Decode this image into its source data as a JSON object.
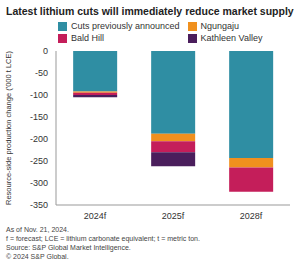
{
  "chart_data": {
    "type": "bar",
    "title": "Latest lithium cuts will immediately reduce market supply",
    "y_label": "Resource-side production change ('000 t LCE)",
    "categories": [
      "2024f",
      "2025f",
      "2028f"
    ],
    "series": [
      {
        "name": "Cuts previously announced",
        "color": "#2f8ea3",
        "values": [
          -92,
          -188,
          -243
        ]
      },
      {
        "name": "Ngungaju",
        "color": "#f0901e",
        "values": [
          -3,
          -17,
          -22
        ]
      },
      {
        "name": "Bald Hill",
        "color": "#c41e5a",
        "values": [
          -5,
          -25,
          -55
        ]
      },
      {
        "name": "Kathleen Valley",
        "color": "#4a1e5c",
        "values": [
          -5,
          -32,
          0
        ]
      }
    ],
    "ylim": [
      -350,
      0
    ],
    "yticks": [
      -350,
      -300,
      -250,
      -200,
      -150,
      -100,
      -50,
      0
    ],
    "stacked": true,
    "grid": false,
    "legend": "top",
    "notes": [
      "As of Nov. 21, 2024.",
      "f = forecast; LCE = lithium carbonate equivalent; t = metric ton.",
      "Source: S&P Global Market Intelligence.",
      "© 2024 S&P Global."
    ]
  }
}
